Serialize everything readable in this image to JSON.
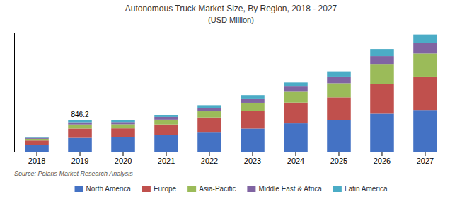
{
  "chart_data": {
    "type": "bar",
    "stacked": true,
    "title": "Autonomous  Truck Market Size, By Region, 2018 - 2027",
    "subtitle": "(USD Million)",
    "categories": [
      "2018",
      "2019",
      "2020",
      "2021",
      "2022",
      "2023",
      "2024",
      "2025",
      "2026",
      "2027"
    ],
    "series": [
      {
        "name": "North America",
        "color": "#4472c4",
        "values": [
          190,
          370,
          390,
          440,
          530,
          620,
          760,
          840,
          1020,
          1120
        ]
      },
      {
        "name": "Europe",
        "color": "#c0504d",
        "values": [
          110,
          250,
          235,
          290,
          390,
          480,
          560,
          620,
          800,
          900
        ]
      },
      {
        "name": "Asia-Pacific",
        "color": "#9bbb59",
        "values": [
          45,
          110,
          110,
          130,
          165,
          215,
          290,
          380,
          520,
          620
        ]
      },
      {
        "name": "Middle East & Africa",
        "color": "#8064a2",
        "values": [
          25,
          60,
          60,
          75,
          90,
          115,
          140,
          180,
          230,
          290
        ]
      },
      {
        "name": "Latin America",
        "color": "#4bacc6",
        "values": [
          20,
          56,
          45,
          55,
          75,
          90,
          110,
          140,
          190,
          220
        ]
      }
    ],
    "annotations": [
      {
        "text": "846.2",
        "category": "2019"
      },
      {
        "text": "Source:  Polaris Market Research  Analysis"
      }
    ],
    "ylim": [
      0,
      3200
    ],
    "tick_labels": "x",
    "grid": false,
    "legend": "bottom"
  }
}
